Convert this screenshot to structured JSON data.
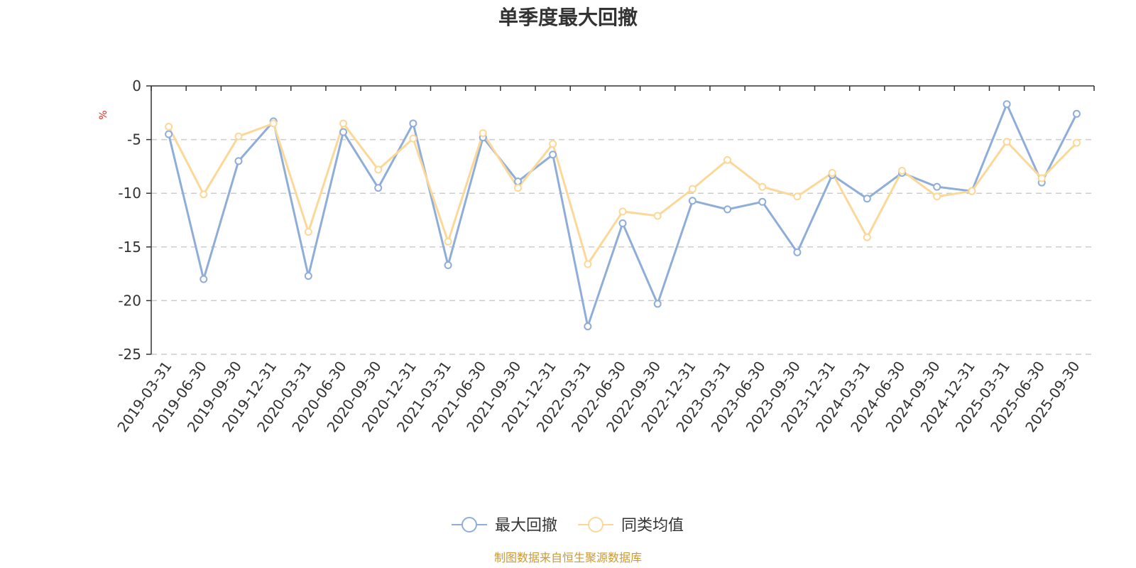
{
  "chart_data": {
    "type": "line",
    "title": "单季度最大回撤",
    "ylabel": "%",
    "xlabel": "",
    "ylim": [
      -25,
      0
    ],
    "yticks": [
      0,
      -5,
      -10,
      -15,
      -20,
      -25
    ],
    "grid": "horizontal-dashed",
    "categories": [
      "2019-03-31",
      "2019-06-30",
      "2019-09-30",
      "2019-12-31",
      "2020-03-31",
      "2020-06-30",
      "2020-09-30",
      "2020-12-31",
      "2021-03-31",
      "2021-06-30",
      "2021-09-30",
      "2021-12-31",
      "2022-03-31",
      "2022-06-30",
      "2022-09-30",
      "2022-12-31",
      "2023-03-31",
      "2023-06-30",
      "2023-09-30",
      "2023-12-31",
      "2024-03-31",
      "2024-06-30",
      "2024-09-30",
      "2024-12-31",
      "2025-03-31",
      "2025-06-30",
      "2025-09-30"
    ],
    "series": [
      {
        "name": "最大回撤",
        "color": "#8eadd9",
        "values": [
          -4.5,
          -18.0,
          -7.0,
          -3.3,
          -17.7,
          -4.3,
          -9.5,
          -3.5,
          -16.7,
          -4.8,
          -8.9,
          -6.4,
          -22.4,
          -12.8,
          -20.3,
          -10.7,
          -11.5,
          -10.8,
          -15.5,
          -8.3,
          -10.5,
          -8.1,
          -9.4,
          -9.8,
          -1.7,
          -9.0,
          -2.6
        ]
      },
      {
        "name": "同类均值",
        "color": "#fcd898",
        "values": [
          -3.8,
          -10.1,
          -4.7,
          -3.5,
          -13.6,
          -3.5,
          -7.8,
          -4.9,
          -14.5,
          -4.4,
          -9.5,
          -5.4,
          -16.6,
          -11.7,
          -12.1,
          -9.6,
          -6.9,
          -9.4,
          -10.3,
          -8.1,
          -14.1,
          -7.9,
          -10.3,
          -9.8,
          -5.2,
          -8.6,
          -5.3
        ]
      }
    ],
    "legend_position": "bottom-center",
    "axis_color": "#333333",
    "grid_color": "#cccccc",
    "unit_color": "#e6281e"
  },
  "footer": {
    "source": "制图数据来自恒生聚源数据库",
    "color": "#cc9933"
  }
}
